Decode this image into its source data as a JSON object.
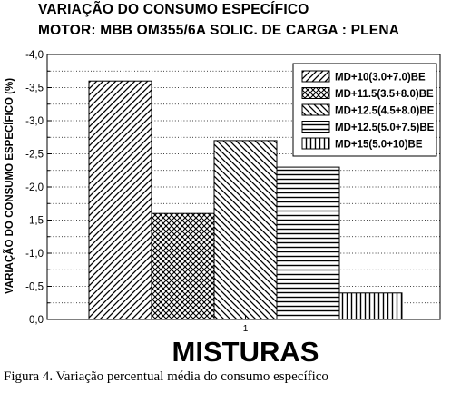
{
  "chart_data": {
    "type": "bar",
    "title": "VARIAÇÃO DO CONSUMO ESPECÍFICO",
    "subtitle": "MOTOR: MBB OM355/6A     SOLIC. DE CARGA : PLENA",
    "ylabel": "VARIAÇÃO DO CONSUMO ESPECÍFICO (%)",
    "xlabel": "MISTURAS",
    "categories": [
      "1"
    ],
    "ylim": [
      0,
      -4.0
    ],
    "y_inverted": true,
    "yticks": [
      "0,0",
      "-0,5",
      "-1,0",
      "-1,5",
      "-2,0",
      "-2,5",
      "-3,0",
      "-3,5",
      "-4,0"
    ],
    "grid": "dotted horizontal",
    "legend_position": "top-right",
    "series": [
      {
        "name": "MD+10(3.0+7.0)BE",
        "values": [
          -3.6
        ],
        "pattern": "diagonal-up"
      },
      {
        "name": "MD+11.5(3.5+8.0)BE",
        "values": [
          -1.6
        ],
        "pattern": "crosshatch"
      },
      {
        "name": "MD+12.5(4.5+8.0)BE",
        "values": [
          -2.7
        ],
        "pattern": "diagonal-down"
      },
      {
        "name": "MD+12.5(5.0+7.5)BE",
        "values": [
          -2.3
        ],
        "pattern": "horizontal"
      },
      {
        "name": "MD+15(5.0+10)BE",
        "values": [
          -0.4
        ],
        "pattern": "vertical"
      }
    ]
  },
  "caption": "Figura 4. Variação percentual média do consumo específico"
}
